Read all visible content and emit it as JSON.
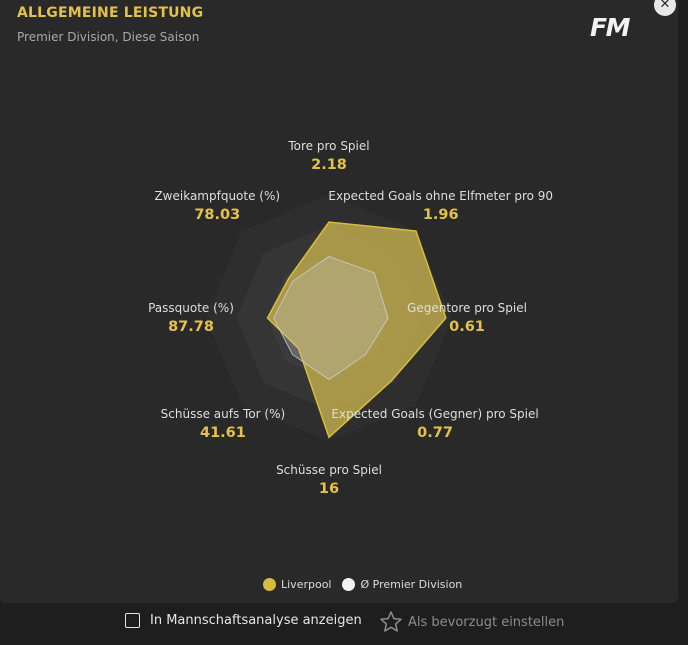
{
  "header": {
    "title": "ALLGEMEINE LEISTUNG",
    "subtitle": "Premier Division, Diese Saison",
    "logo": "FM",
    "close_symbol": "✕"
  },
  "colors": {
    "accent": "#e4c24a",
    "team_fill": "#c9b24f",
    "league_fill": "#bfbfbf",
    "background": "#292929"
  },
  "chart_data": {
    "type": "radar",
    "axes": [
      {
        "name": "Tore pro Spiel",
        "value_label": "2.18"
      },
      {
        "name": "Expected Goals ohne Elfmeter pro 90",
        "value_label": "1.96"
      },
      {
        "name": "Gegentore pro Spiel",
        "value_label": "0.61"
      },
      {
        "name": "Expected Goals (Gegner) pro Spiel",
        "value_label": "0.77"
      },
      {
        "name": "Schüsse pro Spiel",
        "value_label": "16"
      },
      {
        "name": "Schüsse aufs Tor (%)",
        "value_label": "41.61"
      },
      {
        "name": "Passquote (%)",
        "value_label": "87.78"
      },
      {
        "name": "Zweikampfquote (%)",
        "value_label": "78.03"
      }
    ],
    "series": [
      {
        "name": "Liverpool",
        "color": "#c9b24f",
        "values": [
          0.78,
          1.0,
          0.95,
          0.72,
          0.97,
          0.35,
          0.5,
          0.46
        ]
      },
      {
        "name": "Ø Premier Division",
        "color": "#bfbfbf",
        "values": [
          0.5,
          0.52,
          0.48,
          0.42,
          0.5,
          0.42,
          0.45,
          0.42
        ]
      }
    ],
    "rings": 4
  },
  "legend": [
    {
      "label": "Liverpool",
      "color": "#d6bb3d"
    },
    {
      "label": "Ø Premier Division",
      "color": "#f2f2f2"
    }
  ],
  "footer": {
    "checkbox_label": "In Mannschaftsanalyse anzeigen",
    "favorite_label": "Als bevorzugt einstellen"
  }
}
